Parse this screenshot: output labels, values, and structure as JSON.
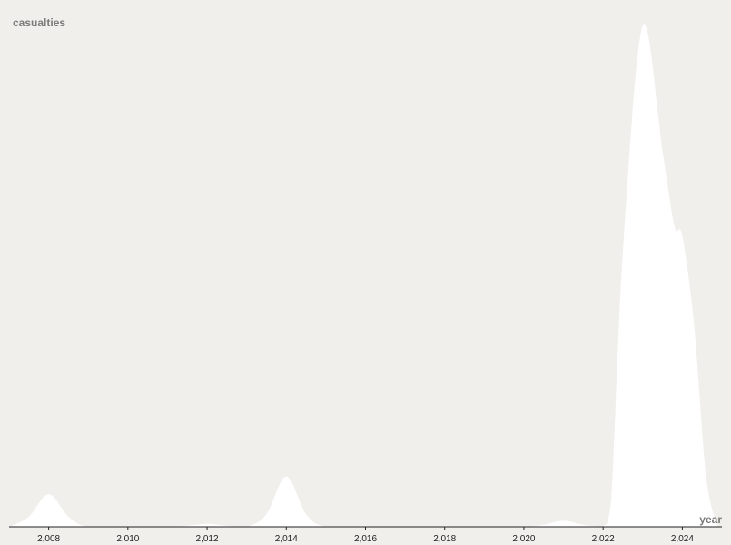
{
  "chart_data": {
    "type": "area",
    "xlabel": "year",
    "ylabel": "casualties",
    "x_ticks": [
      "2,008",
      "2,010",
      "2,012",
      "2,014",
      "2,016",
      "2,018",
      "2,020",
      "2,022",
      "2,024"
    ],
    "xlim": [
      2007,
      2025
    ],
    "ylim": [
      0,
      100
    ],
    "grid": false,
    "fill_color": "#ffffff",
    "background_color": "#f0efeb",
    "series": [
      {
        "x": [
          2007.0,
          2007.5,
          2008.0,
          2008.5,
          2009.0,
          2010.0,
          2011.0,
          2011.5,
          2012.0,
          2012.5,
          2013.0,
          2013.5,
          2014.0,
          2014.5,
          2015.0,
          2016.0,
          2017.0,
          2018.0,
          2019.0,
          2020.0,
          2020.5,
          2021.0,
          2021.5,
          2022.0,
          2022.2,
          2022.5,
          2023.0,
          2023.5,
          2023.8,
          2024.0,
          2024.3,
          2024.6,
          2024.9
        ],
        "y": [
          0,
          2,
          6.5,
          2,
          0,
          0,
          0,
          0.2,
          0.6,
          0.2,
          0,
          2.5,
          10,
          2.5,
          0,
          0,
          0,
          0,
          0,
          0,
          0.4,
          1.2,
          0.4,
          0,
          5,
          55,
          100,
          75,
          60,
          58,
          40,
          10,
          0
        ]
      }
    ]
  }
}
